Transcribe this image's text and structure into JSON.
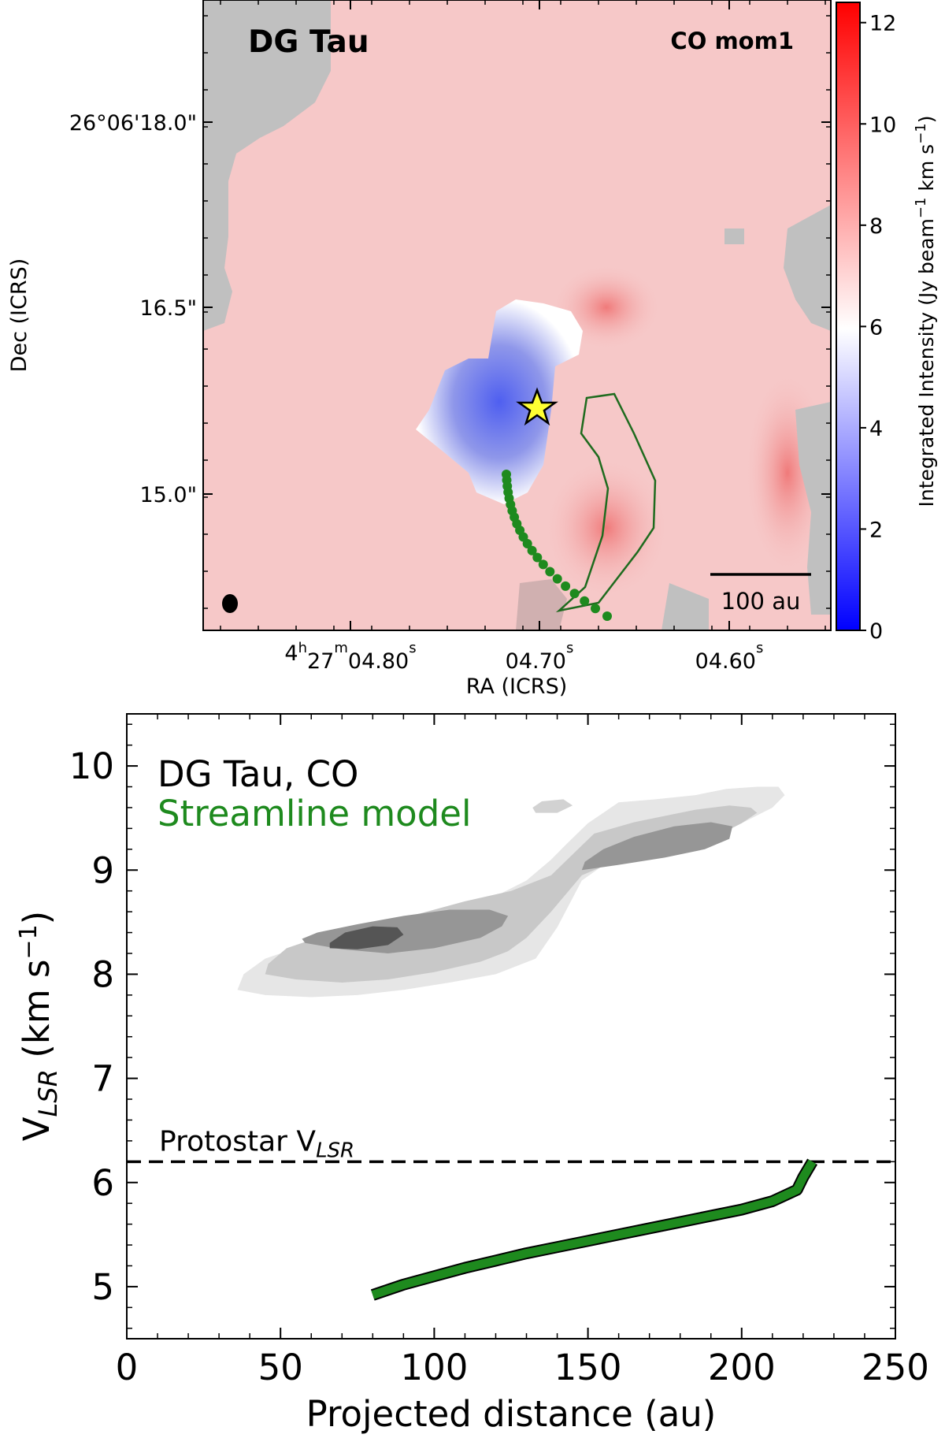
{
  "chart_data": [
    {
      "type": "heatmap",
      "panel_label": "DG Tau",
      "map_label": "CO mom1",
      "xlabel": "RA (ICRS)",
      "ylabel": "Dec (ICRS)",
      "x_ticks": [
        {
          "base": "4",
          "sup1": "h",
          "mid": "27",
          "sup2": "m",
          "num": "04.80",
          "sup3": "s"
        },
        {
          "base": "",
          "sup1": "",
          "mid": "",
          "sup2": "",
          "num": "04.70",
          "sup3": "s"
        },
        {
          "base": "",
          "sup1": "",
          "mid": "",
          "sup2": "",
          "num": "04.60",
          "sup3": "s"
        }
      ],
      "y_ticks": [
        "26°06'18.0\"",
        "16.5\"",
        "15.0\""
      ],
      "colorbar": {
        "label_main": "Integrated Intensity (Jy beam",
        "label_sup1": "−1",
        "label_mid": " km s",
        "label_sup2": "−1",
        "label_end": ")",
        "ticks": [
          "0",
          "2",
          "4",
          "6",
          "8",
          "10",
          "12"
        ],
        "range": [
          0,
          12.4
        ],
        "colormap": [
          "#0000ff",
          "#ffffff",
          "#ff0000"
        ]
      },
      "scalebar_label": "100 au",
      "colors": {
        "nan": "#c0c0c0",
        "background": "#f6c8c8",
        "model": "#1e8a1e",
        "star": "#ffff33"
      }
    },
    {
      "type": "line",
      "legend": {
        "data_label": "DG Tau, CO",
        "model_label": "Streamline model"
      },
      "xlabel": "Projected distance (au)",
      "ylabel_main": "V",
      "ylabel_sub": "LSR",
      "ylabel_unit": " (km s",
      "ylabel_sup": "−1",
      "ylabel_end": ")",
      "xlim": [
        0,
        250
      ],
      "ylim": [
        4.5,
        10.5
      ],
      "x_ticks": [
        0,
        50,
        100,
        150,
        200,
        250
      ],
      "y_ticks": [
        5,
        6,
        7,
        8,
        9,
        10
      ],
      "reference_line": {
        "label_main": "Protostar V",
        "label_sub": "LSR",
        "value": 6.2
      },
      "series": [
        {
          "name": "Streamline model",
          "color": "#1e8a1e",
          "x": [
            80,
            90,
            100,
            110,
            120,
            130,
            140,
            150,
            160,
            170,
            180,
            190,
            200,
            210,
            218,
            220,
            223
          ],
          "y": [
            4.92,
            5.02,
            5.1,
            5.18,
            5.25,
            5.32,
            5.38,
            5.44,
            5.5,
            5.56,
            5.62,
            5.68,
            5.74,
            5.82,
            5.93,
            6.05,
            6.2
          ]
        }
      ],
      "contours": [
        {
          "level": 1,
          "color": "#e6e6e6",
          "x": [
            36,
            45,
            60,
            75,
            90,
            105,
            120,
            133,
            140,
            148,
            160,
            175,
            190,
            200,
            210,
            214,
            212,
            205,
            195,
            185,
            172,
            160,
            150,
            143,
            138,
            130,
            120,
            105,
            90,
            75,
            60,
            45,
            38
          ],
          "y": [
            7.85,
            7.8,
            7.78,
            7.8,
            7.85,
            7.92,
            8.0,
            8.15,
            8.45,
            8.9,
            9.15,
            9.3,
            9.35,
            9.45,
            9.6,
            9.72,
            9.8,
            9.8,
            9.78,
            9.72,
            9.68,
            9.65,
            9.45,
            9.25,
            9.1,
            8.9,
            8.75,
            8.6,
            8.5,
            8.4,
            8.3,
            8.15,
            8.0
          ]
        },
        {
          "level": 2,
          "color": "#c8c8c8",
          "x": [
            45,
            55,
            70,
            85,
            100,
            115,
            124,
            130,
            138,
            148,
            160,
            175,
            190,
            200,
            205,
            203,
            196,
            185,
            175,
            165,
            152,
            145,
            138,
            125,
            110,
            95,
            80,
            65,
            52,
            46
          ],
          "y": [
            8.0,
            7.95,
            7.92,
            7.95,
            8.02,
            8.12,
            8.22,
            8.35,
            8.6,
            8.95,
            9.1,
            9.2,
            9.3,
            9.45,
            9.55,
            9.6,
            9.62,
            9.58,
            9.52,
            9.46,
            9.35,
            9.15,
            8.95,
            8.8,
            8.7,
            8.58,
            8.48,
            8.38,
            8.25,
            8.1
          ]
        },
        {
          "level": 3,
          "color": "#969696",
          "x": [
            58,
            70,
            85,
            100,
            115,
            122,
            124,
            118,
            105,
            90,
            75,
            62,
            57
          ],
          "y": [
            8.3,
            8.24,
            8.2,
            8.25,
            8.35,
            8.46,
            8.56,
            8.62,
            8.62,
            8.56,
            8.48,
            8.4,
            8.34
          ]
        },
        {
          "level": 4,
          "color": "#969696",
          "x": [
            148,
            160,
            175,
            188,
            196,
            197,
            190,
            178,
            165,
            155,
            149
          ],
          "y": [
            9.0,
            9.05,
            9.12,
            9.2,
            9.3,
            9.42,
            9.46,
            9.42,
            9.32,
            9.2,
            9.08
          ]
        },
        {
          "level": 5,
          "color": "#555555",
          "x": [
            66,
            75,
            85,
            90,
            88,
            80,
            71,
            66
          ],
          "y": [
            8.25,
            8.24,
            8.28,
            8.38,
            8.45,
            8.46,
            8.4,
            8.3
          ]
        },
        {
          "level": 6,
          "color": "#d2d2d2",
          "x": [
            133,
            140,
            145,
            142,
            135,
            132
          ],
          "y": [
            9.55,
            9.55,
            9.62,
            9.68,
            9.66,
            9.6
          ]
        }
      ]
    }
  ]
}
